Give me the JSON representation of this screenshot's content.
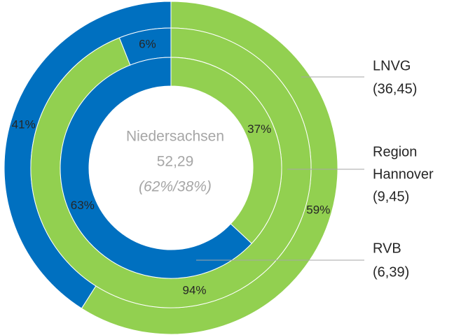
{
  "chart_data": {
    "type": "donut",
    "center": [
      "Niedersachsen",
      "52,29",
      "(62%/38%)"
    ],
    "rings": [
      {
        "label": [
          "LNVG",
          "(36,45)"
        ],
        "values": [
          59,
          41
        ],
        "value_labels": [
          "59%",
          "41%"
        ],
        "colors": [
          "#92d050",
          "#0070c0"
        ]
      },
      {
        "label": [
          "Region",
          "Hannover",
          "(9,45)"
        ],
        "values": [
          94,
          6
        ],
        "value_labels": [
          "94%",
          "6%"
        ],
        "colors": [
          "#92d050",
          "#0070c0"
        ]
      },
      {
        "label": [
          "RVB",
          "(6,39)"
        ],
        "values": [
          37,
          63
        ],
        "value_labels": [
          "37%",
          "63%"
        ],
        "colors": [
          "#92d050",
          "#0070c0"
        ]
      }
    ]
  }
}
